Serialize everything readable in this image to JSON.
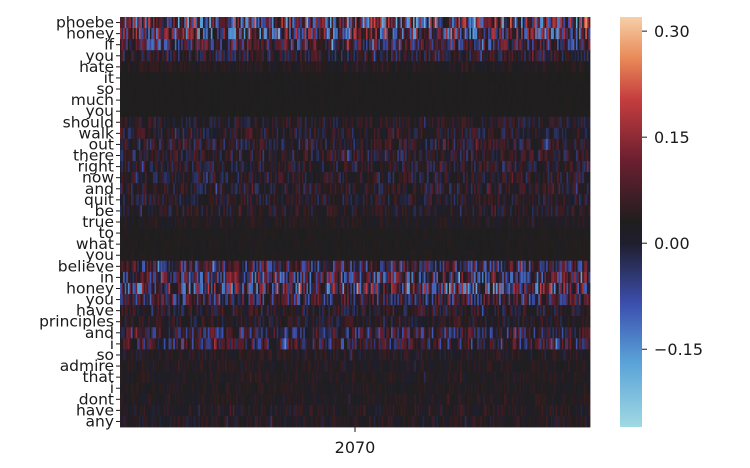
{
  "chart_data": {
    "type": "heatmap",
    "title": "",
    "xlabel": "",
    "ylabel": "",
    "x_tick_labels": [
      "2070"
    ],
    "row_labels": [
      "phoebe",
      "honey",
      "if",
      "you",
      "hate",
      "it",
      "so",
      "much",
      "you",
      "should",
      "walk",
      "out",
      "there",
      "right",
      "now",
      "and",
      "quit",
      "be",
      "true",
      "to",
      "what",
      "you",
      "believe",
      "in",
      "honey",
      "you",
      "have",
      "principles",
      "and",
      "i",
      "so",
      "admire",
      "that",
      "i",
      "dont",
      "have",
      "any"
    ],
    "row_intensity": [
      1.0,
      0.85,
      0.6,
      0.35,
      0.15,
      0.02,
      0.02,
      0.02,
      0.02,
      0.25,
      0.3,
      0.35,
      0.35,
      0.3,
      0.3,
      0.3,
      0.28,
      0.25,
      0.15,
      0.05,
      0.05,
      0.05,
      0.55,
      0.7,
      0.9,
      0.55,
      0.3,
      0.25,
      0.5,
      0.5,
      0.2,
      0.15,
      0.15,
      0.12,
      0.15,
      0.2,
      0.2
    ],
    "columns_shown": 300,
    "colorbar": {
      "colormap": "icefire",
      "vmin": -0.26,
      "vmax": 0.32,
      "ticks": [
        0.3,
        0.15,
        0.0,
        -0.15
      ],
      "tick_labels": [
        "0.30",
        "0.15",
        "0.00",
        "−0.15"
      ]
    },
    "grid": false,
    "legend": "colorbar-right"
  }
}
